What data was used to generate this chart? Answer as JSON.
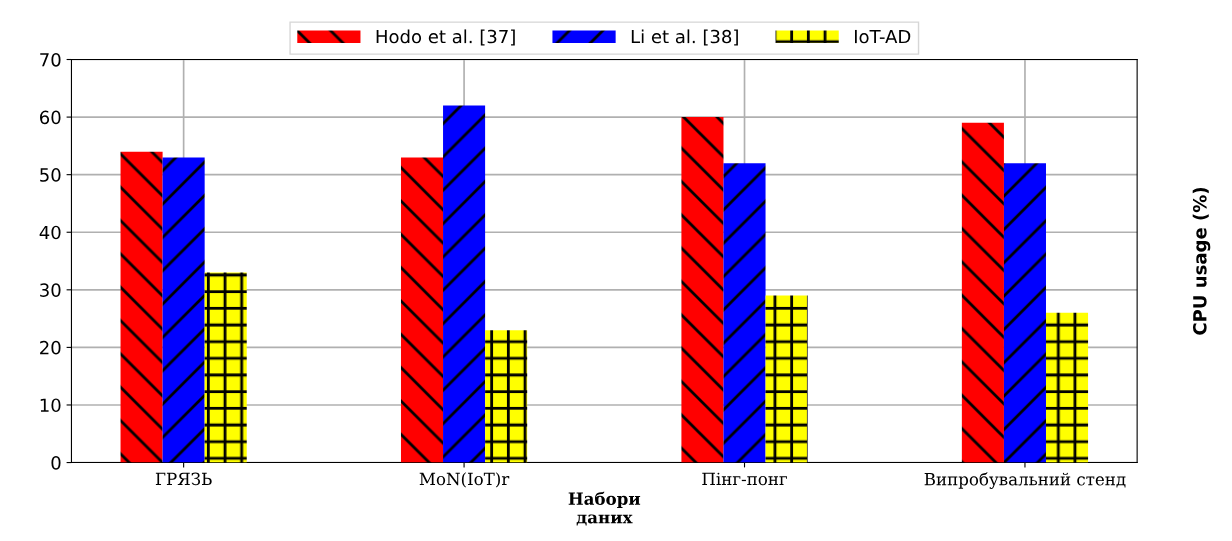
{
  "chart_data": {
    "type": "bar",
    "xlabel": "Набори\nданих",
    "ylabel": "CPU usage (%)",
    "categories": [
      "ГРЯЗЬ",
      "MoN(IoT)r",
      "Пінг-понг",
      "Випробувальний стенд"
    ],
    "series": [
      {
        "name": "Hodo et al. [37]",
        "color": "#ff0000",
        "values": [
          54,
          53,
          60,
          59
        ]
      },
      {
        "name": "Li et al. [38]",
        "color": "#0000ff",
        "values": [
          53,
          62,
          52,
          52
        ]
      },
      {
        "name": "IoT-AD",
        "color": "#ffff00",
        "values": [
          33,
          23,
          29,
          26
        ]
      }
    ],
    "ylim": [
      0,
      70
    ],
    "yticks": [
      0,
      10,
      20,
      30,
      40,
      50,
      60,
      70
    ],
    "grid": true,
    "legend": "top"
  }
}
